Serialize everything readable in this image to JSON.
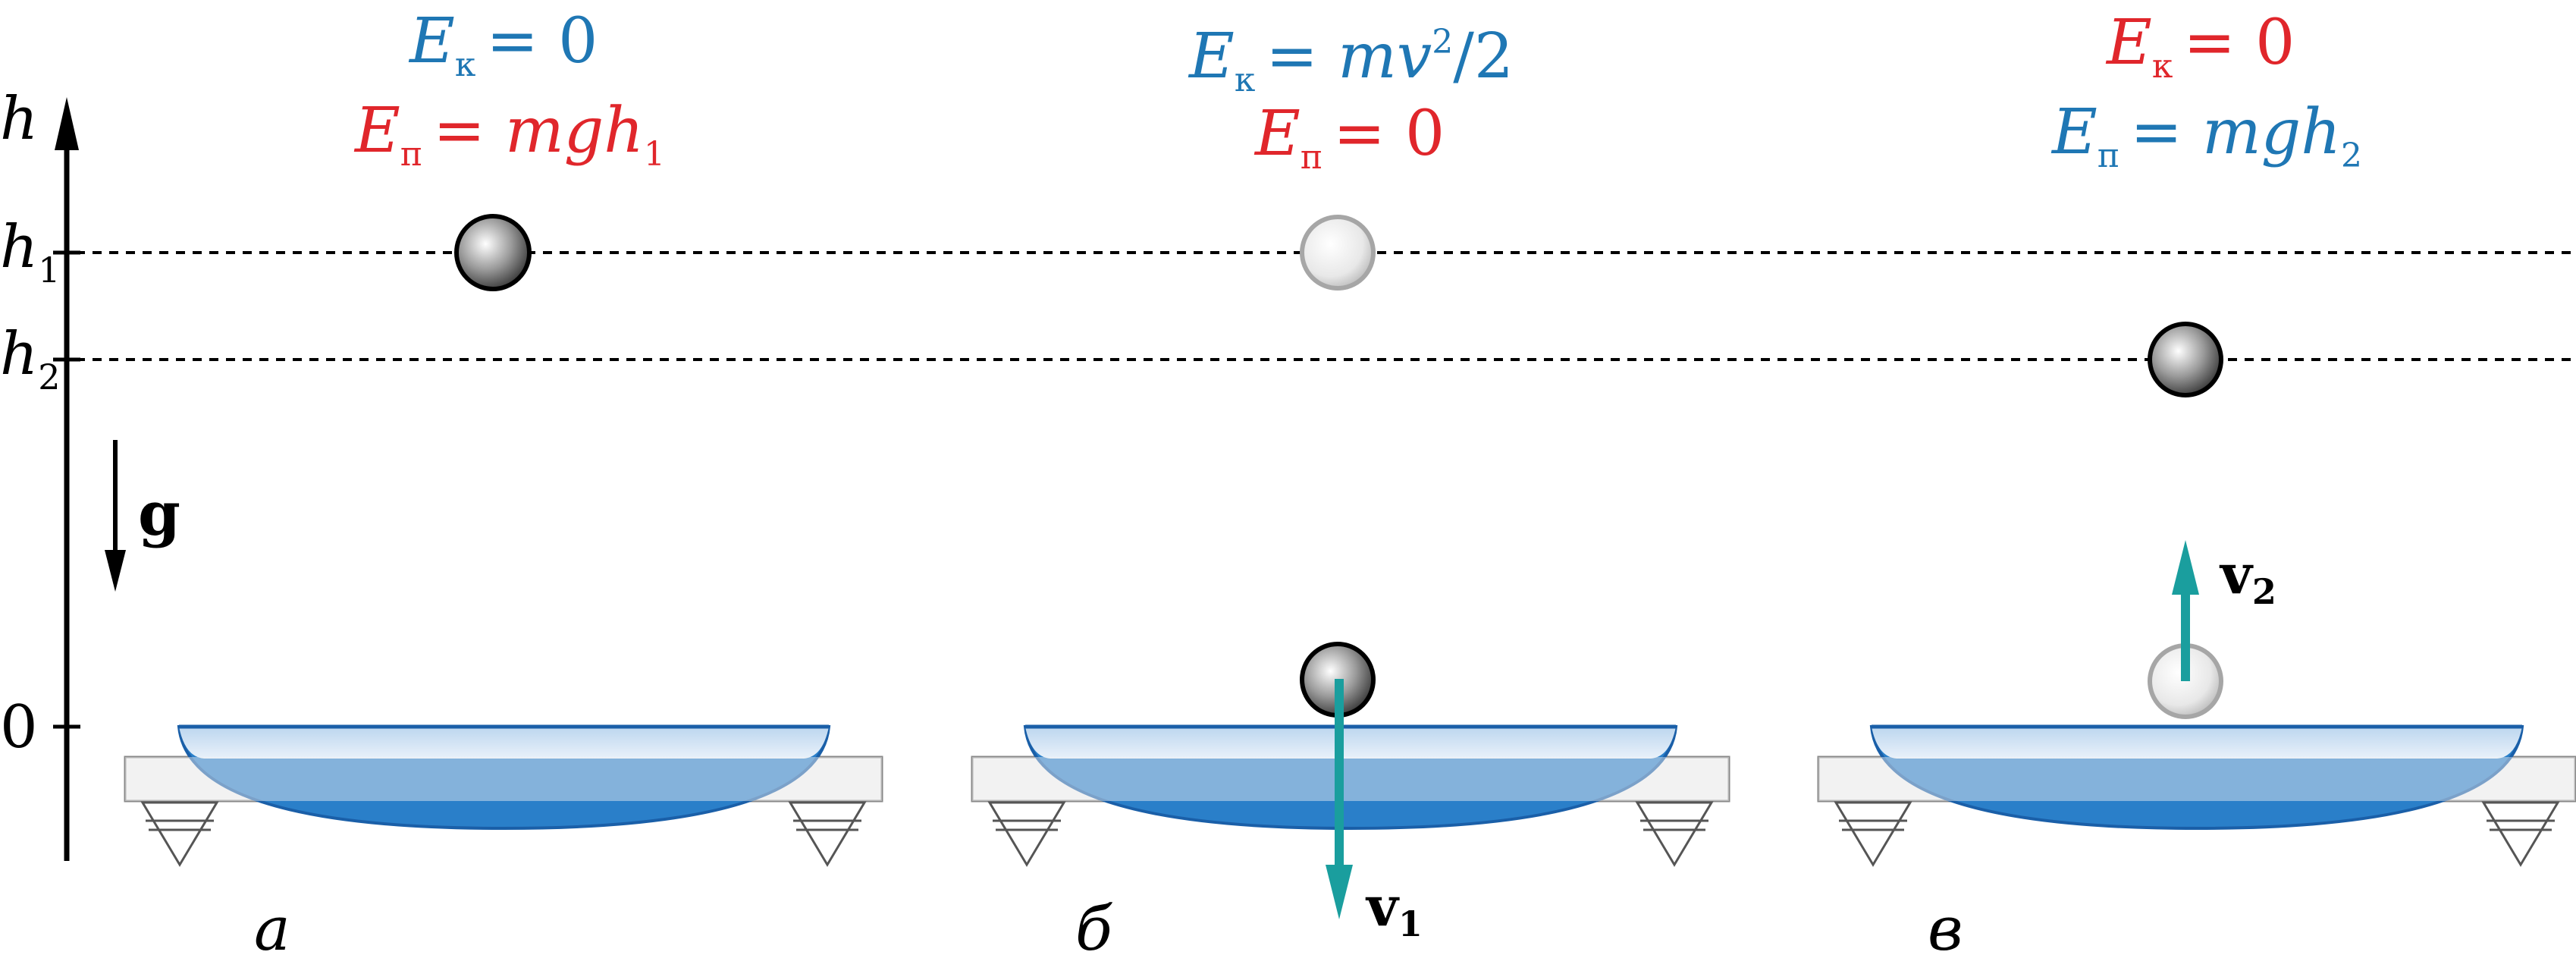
{
  "colors": {
    "kinetic": "#1f77b4",
    "potential": "#e0262b",
    "velocity": "#1a9e9e",
    "axis": "#000000",
    "dish_fill": "#2a7fc9",
    "dish_edge": "#1a5fa8",
    "support": "#f2f2f2"
  },
  "axis": {
    "h_label": "h",
    "zero_label": "0",
    "h1_base": "h",
    "h1_sub": "1",
    "h2_base": "h",
    "h2_sub": "2"
  },
  "gravity": {
    "label": "g"
  },
  "panels": [
    {
      "letter": "а",
      "ek_E": "E",
      "ek_sub": "к",
      "ek_rhs": "= 0",
      "ep_E": "E",
      "ep_sub": "п",
      "ep_rhs": "= mgh",
      "ep_rhs_sub": "1"
    },
    {
      "letter": "б",
      "ek_E": "E",
      "ek_sub": "к",
      "ek_rhs_a": "= mv",
      "ek_rhs_sup": "2",
      "ek_rhs_b": "/2",
      "ep_E": "E",
      "ep_sub": "п",
      "ep_rhs": "= 0",
      "velocity_label": "v",
      "velocity_sub": "1"
    },
    {
      "letter": "в",
      "ek_E": "E",
      "ek_sub": "к",
      "ek_rhs": "= 0",
      "ep_E": "E",
      "ep_sub": "п",
      "ep_rhs": "= mgh",
      "ep_rhs_sub": "2",
      "velocity_label": "v",
      "velocity_sub": "2"
    }
  ]
}
